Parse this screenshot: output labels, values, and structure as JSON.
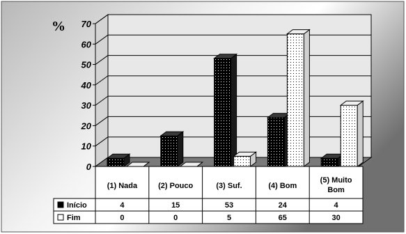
{
  "chart_data": {
    "type": "bar",
    "title": "",
    "ylabel": "%",
    "xlabel": "",
    "ylim": [
      0,
      70
    ],
    "yticks": [
      0,
      10,
      20,
      30,
      40,
      50,
      60,
      70
    ],
    "grid": true,
    "legend": "table-below",
    "categories": [
      "(1) Nada",
      "(2) Pouco",
      "(3) Suf.",
      "(4) Bom",
      "(5) Muito Bom"
    ],
    "series": [
      {
        "name": "Início",
        "values": [
          4,
          15,
          53,
          24,
          4
        ],
        "fill": "black-dotted"
      },
      {
        "name": "Fim",
        "values": [
          0,
          0,
          5,
          65,
          30
        ],
        "fill": "white-dotted"
      }
    ],
    "table": {
      "rows": [
        {
          "label": "Início",
          "values": [
            "4",
            "15",
            "53",
            "24",
            "4"
          ]
        },
        {
          "label": "Fim",
          "values": [
            "0",
            "0",
            "5",
            "65",
            "30"
          ]
        }
      ]
    }
  },
  "colors": {
    "background_light": "#ffffff",
    "background_dark": "#6a6a6a",
    "bar_dark": "#000000",
    "bar_light": "#ffffff"
  }
}
